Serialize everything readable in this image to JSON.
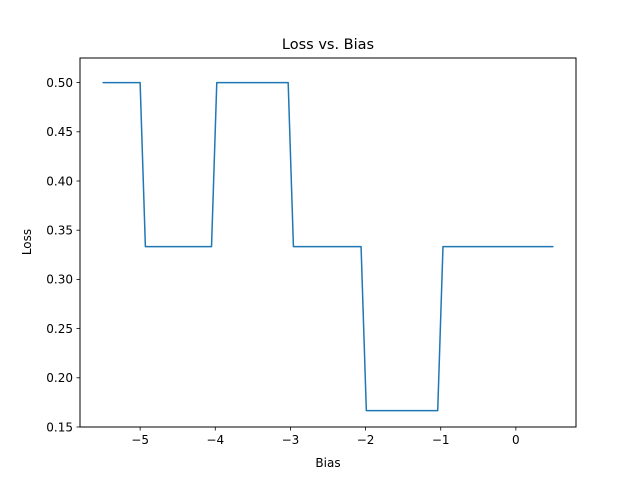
{
  "chart_data": {
    "type": "line",
    "title": "Loss vs. Bias",
    "xlabel": "Bias",
    "ylabel": "Loss",
    "xlim": [
      -5.8,
      0.8
    ],
    "ylim": [
      0.15,
      0.525
    ],
    "xticks": [
      -5,
      -4,
      -3,
      -2,
      -1,
      0
    ],
    "xtick_labels": [
      "−5",
      "−4",
      "−3",
      "−2",
      "−1",
      "0"
    ],
    "yticks": [
      0.15,
      0.2,
      0.25,
      0.3,
      0.35,
      0.4,
      0.45,
      0.5
    ],
    "ytick_labels": [
      "0.15",
      "0.20",
      "0.25",
      "0.30",
      "0.35",
      "0.40",
      "0.45",
      "0.50"
    ],
    "grid": false,
    "series": [
      {
        "color": "#1f77b4",
        "x": [
          -5.5,
          -5.0,
          -4.93,
          -4.05,
          -3.98,
          -3.03,
          -2.96,
          -2.06,
          -1.99,
          -1.04,
          -0.97,
          0.5
        ],
        "y": [
          0.5,
          0.5,
          0.3333,
          0.3333,
          0.5,
          0.5,
          0.3333,
          0.3333,
          0.1667,
          0.1667,
          0.3333,
          0.3333
        ]
      }
    ]
  }
}
